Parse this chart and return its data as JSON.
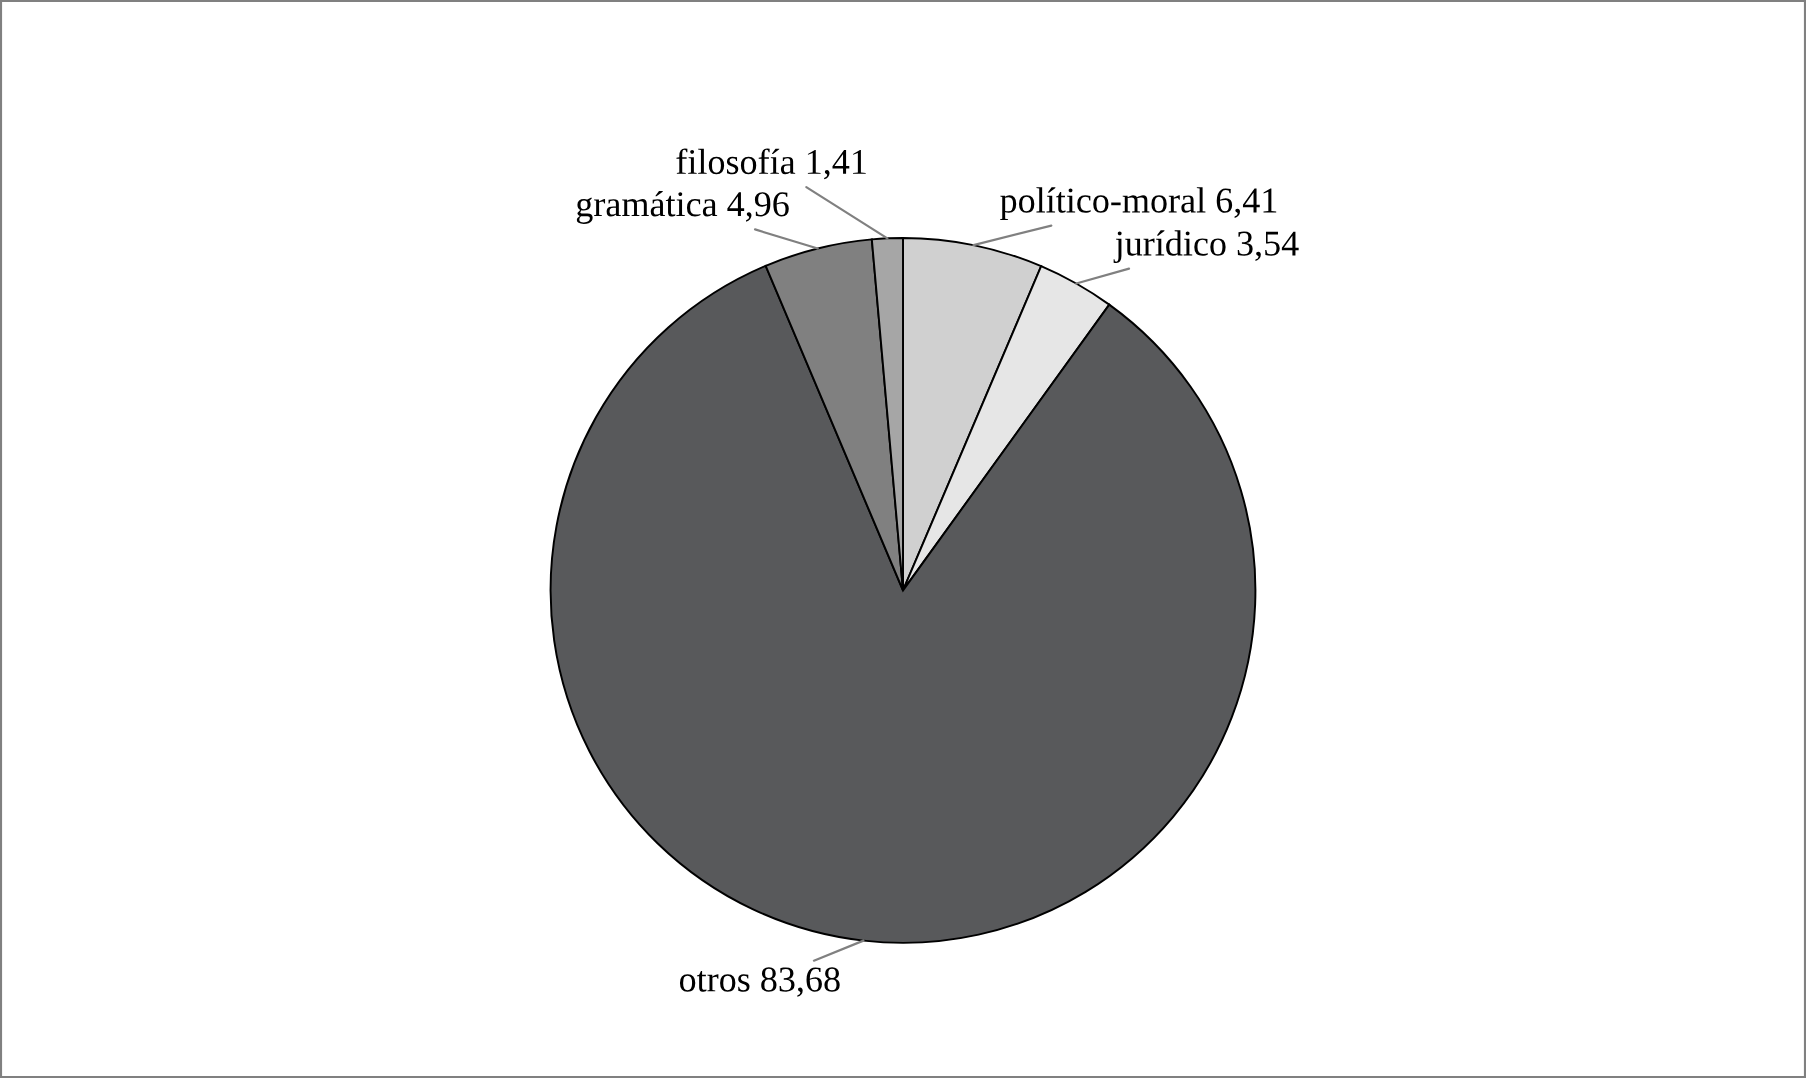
{
  "chart_data": {
    "type": "pie",
    "categories": [
      "político-moral",
      "jurídico",
      "otros",
      "gramática",
      "filosofía"
    ],
    "values": [
      6.41,
      3.54,
      83.68,
      4.96,
      1.41
    ],
    "value_labels": [
      "6,41",
      "3,54",
      "83,68",
      "4,96",
      "1,41"
    ],
    "colors": [
      "#d0d0d0",
      "#e6e6e6",
      "#58595b",
      "#808080",
      "#a6a6a6"
    ],
    "legend": false
  }
}
